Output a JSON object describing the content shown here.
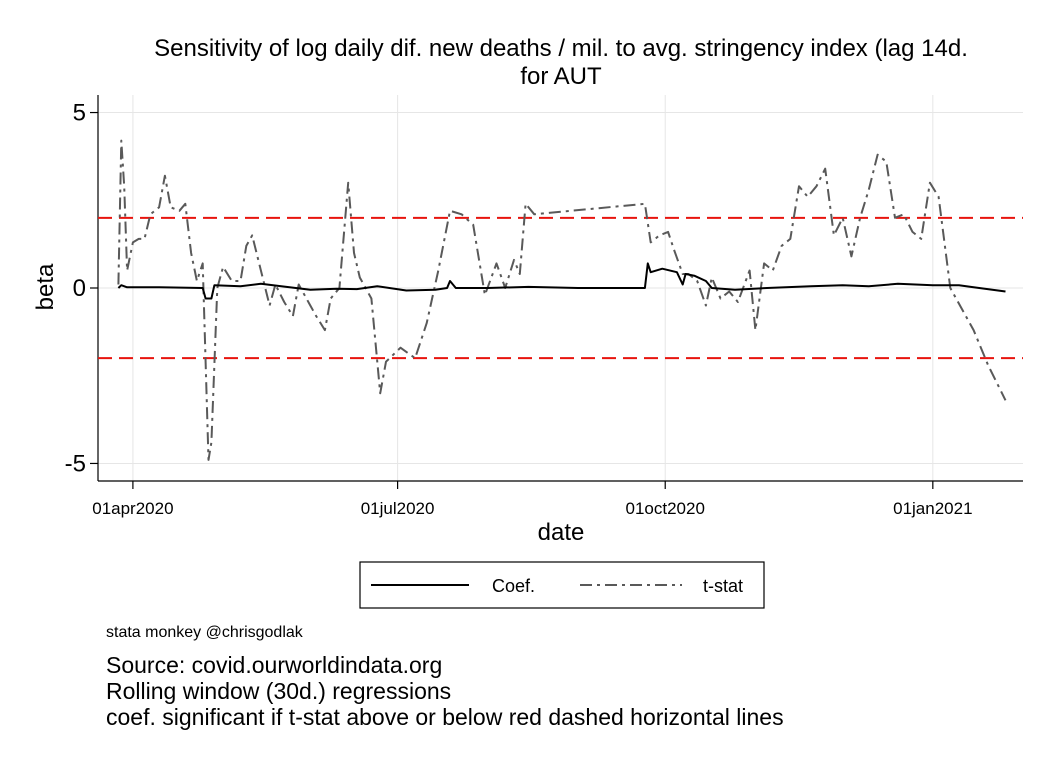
{
  "chart_data": {
    "type": "line",
    "title": "Sensitivity of log daily dif. new deaths / mil. to avg. stringency index (lag 14d.",
    "title_line2": "for AUT",
    "xlabel": "date",
    "ylabel": "beta",
    "x_ticks": [
      "2020-04-01",
      "2020-07-01",
      "2020-10-01",
      "2021-01-01"
    ],
    "x_tick_labels": [
      "01apr2020",
      "01jul2020",
      "01oct2020",
      "01jan2021"
    ],
    "y_ticks": [
      -5,
      0,
      5
    ],
    "y_tick_labels": [
      "-5",
      "0",
      "5"
    ],
    "xlim": [
      "2020-03-20",
      "2021-02-01"
    ],
    "ylim": [
      -5.5,
      5.5
    ],
    "grid": true,
    "legend_position": "bottom",
    "reference_lines": [
      {
        "y": 2,
        "color": "#e8140e",
        "style": "dashed"
      },
      {
        "y": -2,
        "color": "#e8140e",
        "style": "dashed"
      }
    ],
    "series": [
      {
        "name": "Coef.",
        "color": "#000000",
        "style": "solid",
        "points": [
          [
            "2020-03-27",
            0.0
          ],
          [
            "2020-03-28",
            0.08
          ],
          [
            "2020-03-30",
            0.02
          ],
          [
            "2020-04-10",
            0.02
          ],
          [
            "2020-04-25",
            0.0
          ],
          [
            "2020-04-26",
            -0.3
          ],
          [
            "2020-04-28",
            -0.3
          ],
          [
            "2020-04-29",
            0.08
          ],
          [
            "2020-05-08",
            0.05
          ],
          [
            "2020-05-15",
            0.12
          ],
          [
            "2020-05-22",
            0.05
          ],
          [
            "2020-06-01",
            -0.05
          ],
          [
            "2020-06-10",
            -0.02
          ],
          [
            "2020-06-17",
            -0.03
          ],
          [
            "2020-06-24",
            0.05
          ],
          [
            "2020-07-04",
            -0.07
          ],
          [
            "2020-07-14",
            -0.05
          ],
          [
            "2020-07-18",
            0.0
          ],
          [
            "2020-07-19",
            0.2
          ],
          [
            "2020-07-21",
            0.0
          ],
          [
            "2020-08-01",
            0.0
          ],
          [
            "2020-08-15",
            0.03
          ],
          [
            "2020-09-01",
            0.0
          ],
          [
            "2020-09-24",
            0.0
          ],
          [
            "2020-09-25",
            0.7
          ],
          [
            "2020-09-26",
            0.45
          ],
          [
            "2020-09-30",
            0.55
          ],
          [
            "2020-10-05",
            0.45
          ],
          [
            "2020-10-07",
            0.1
          ],
          [
            "2020-10-08",
            0.4
          ],
          [
            "2020-10-11",
            0.35
          ],
          [
            "2020-10-15",
            0.2
          ],
          [
            "2020-10-17",
            0.0
          ],
          [
            "2020-10-25",
            -0.05
          ],
          [
            "2020-11-05",
            0.0
          ],
          [
            "2020-11-20",
            0.05
          ],
          [
            "2020-12-01",
            0.08
          ],
          [
            "2020-12-10",
            0.05
          ],
          [
            "2020-12-20",
            0.12
          ],
          [
            "2021-01-01",
            0.08
          ],
          [
            "2021-01-10",
            0.08
          ],
          [
            "2021-01-15",
            0.02
          ],
          [
            "2021-01-26",
            -0.1
          ]
        ]
      },
      {
        "name": "t-stat",
        "color": "#595959",
        "style": "dashdot",
        "points": [
          [
            "2020-03-27",
            0.1
          ],
          [
            "2020-03-28",
            4.2
          ],
          [
            "2020-03-29",
            2.9
          ],
          [
            "2020-03-30",
            0.5
          ],
          [
            "2020-04-01",
            1.3
          ],
          [
            "2020-04-03",
            1.4
          ],
          [
            "2020-04-05",
            1.4
          ],
          [
            "2020-04-07",
            2.1
          ],
          [
            "2020-04-10",
            2.3
          ],
          [
            "2020-04-12",
            3.2
          ],
          [
            "2020-04-14",
            2.3
          ],
          [
            "2020-04-17",
            2.2
          ],
          [
            "2020-04-19",
            2.4
          ],
          [
            "2020-04-21",
            1.0
          ],
          [
            "2020-04-23",
            0.2
          ],
          [
            "2020-04-25",
            0.7
          ],
          [
            "2020-04-27",
            -4.9
          ],
          [
            "2020-04-28",
            -4.4
          ],
          [
            "2020-04-30",
            0.0
          ],
          [
            "2020-05-02",
            0.6
          ],
          [
            "2020-05-05",
            0.2
          ],
          [
            "2020-05-08",
            0.2
          ],
          [
            "2020-05-10",
            1.2
          ],
          [
            "2020-05-12",
            1.5
          ],
          [
            "2020-05-15",
            0.5
          ],
          [
            "2020-05-18",
            -0.5
          ],
          [
            "2020-05-20",
            0.1
          ],
          [
            "2020-05-23",
            -0.4
          ],
          [
            "2020-05-26",
            -0.8
          ],
          [
            "2020-05-28",
            0.1
          ],
          [
            "2020-06-01",
            -0.5
          ],
          [
            "2020-06-03",
            -0.8
          ],
          [
            "2020-06-06",
            -1.2
          ],
          [
            "2020-06-08",
            -0.3
          ],
          [
            "2020-06-11",
            0.0
          ],
          [
            "2020-06-14",
            3.0
          ],
          [
            "2020-06-16",
            1.0
          ],
          [
            "2020-06-18",
            0.3
          ],
          [
            "2020-06-22",
            -0.3
          ],
          [
            "2020-06-25",
            -3.0
          ],
          [
            "2020-06-27",
            -2.1
          ],
          [
            "2020-07-02",
            -1.7
          ],
          [
            "2020-07-07",
            -2.0
          ],
          [
            "2020-07-11",
            -1.0
          ],
          [
            "2020-07-15",
            0.5
          ],
          [
            "2020-07-19",
            2.2
          ],
          [
            "2020-07-23",
            2.1
          ],
          [
            "2020-07-27",
            1.8
          ],
          [
            "2020-07-31",
            -0.2
          ],
          [
            "2020-08-04",
            0.7
          ],
          [
            "2020-08-07",
            0.0
          ],
          [
            "2020-08-10",
            0.8
          ],
          [
            "2020-08-12",
            0.4
          ],
          [
            "2020-08-14",
            2.4
          ],
          [
            "2020-08-17",
            2.1
          ],
          [
            "2020-09-24",
            2.4
          ],
          [
            "2020-09-26",
            1.3
          ],
          [
            "2020-09-29",
            1.5
          ],
          [
            "2020-10-02",
            1.6
          ],
          [
            "2020-10-04",
            1.1
          ],
          [
            "2020-10-07",
            0.4
          ],
          [
            "2020-10-09",
            0.4
          ],
          [
            "2020-10-12",
            0.2
          ],
          [
            "2020-10-15",
            -0.5
          ],
          [
            "2020-10-17",
            0.3
          ],
          [
            "2020-10-20",
            -0.3
          ],
          [
            "2020-10-23",
            -0.1
          ],
          [
            "2020-10-26",
            -0.4
          ],
          [
            "2020-10-30",
            0.5
          ],
          [
            "2020-11-01",
            -1.2
          ],
          [
            "2020-11-04",
            0.7
          ],
          [
            "2020-11-07",
            0.5
          ],
          [
            "2020-11-10",
            1.2
          ],
          [
            "2020-11-13",
            1.4
          ],
          [
            "2020-11-16",
            2.9
          ],
          [
            "2020-11-19",
            2.6
          ],
          [
            "2020-11-22",
            2.9
          ],
          [
            "2020-11-25",
            3.4
          ],
          [
            "2020-11-28",
            1.5
          ],
          [
            "2020-12-01",
            2.0
          ],
          [
            "2020-12-04",
            0.9
          ],
          [
            "2020-12-07",
            2.0
          ],
          [
            "2020-12-10",
            2.8
          ],
          [
            "2020-12-13",
            3.8
          ],
          [
            "2020-12-16",
            3.6
          ],
          [
            "2020-12-19",
            2.0
          ],
          [
            "2020-12-22",
            2.1
          ],
          [
            "2020-12-25",
            1.6
          ],
          [
            "2020-12-28",
            1.4
          ],
          [
            "2020-12-31",
            3.0
          ],
          [
            "2021-01-03",
            2.6
          ],
          [
            "2021-01-07",
            0.0
          ],
          [
            "2021-01-15",
            -1.2
          ],
          [
            "2021-01-20",
            -2.2
          ],
          [
            "2021-01-26",
            -3.2
          ]
        ]
      }
    ]
  },
  "footer": {
    "credit": "stata monkey @chrisgodlak",
    "notes": [
      "Source: covid.ourworldindata.org",
      "Rolling window (30d.) regressions",
      "coef. significant if t-stat above or below red dashed horizontal lines"
    ]
  }
}
